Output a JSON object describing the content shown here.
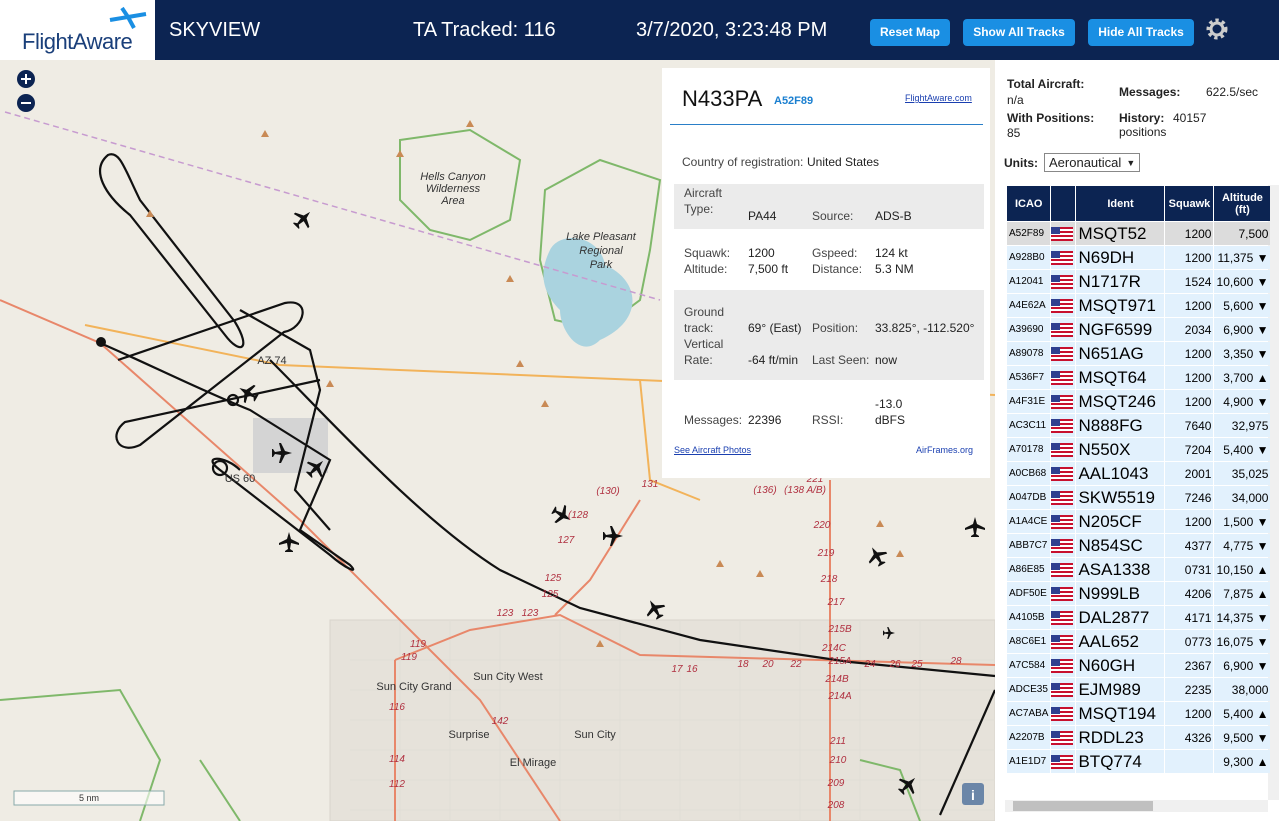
{
  "header": {
    "logo": "FlightAware",
    "title": "SKYVIEW",
    "tracked": "TA Tracked: 116",
    "datetime": "3/7/2020, 3:23:48 PM",
    "buttons": [
      "Reset Map",
      "Show All Tracks",
      "Hide All Tracks"
    ]
  },
  "map": {
    "labels": [
      "Hells Canyon",
      "Wilderness",
      "Area",
      "Lake Pleasant",
      "Regional",
      "Park",
      "Sun City Grand",
      "Sun City West",
      "Surprise",
      "Sun City",
      "El Mirage",
      "AZ 74",
      "US 60"
    ],
    "road_labels": [
      "119",
      "119",
      "116",
      "114",
      "112",
      "142",
      "123",
      "123",
      "125",
      "125",
      "127",
      "(128",
      "(130)",
      "131",
      "(136)",
      "(138 A/B)",
      "221",
      "220",
      "219",
      "218",
      "217",
      "215B",
      "214C",
      "215A",
      "214B",
      "214A",
      "211",
      "210",
      "209",
      "208",
      "17",
      "16",
      "18",
      "20",
      "22",
      "24",
      "26",
      "25",
      "28"
    ],
    "scale": "5 nm",
    "info": "i"
  },
  "popup": {
    "ident": "N433PA",
    "hex": "A52F89",
    "link": "FlightAware.com",
    "country_label": "Country of registration:",
    "country": "United States",
    "fields": [
      {
        "label": "Aircraft Type:",
        "value": "PA44"
      },
      {
        "label": "Source:",
        "value": "ADS-B"
      },
      {
        "label": "Squawk:",
        "value": "1200"
      },
      {
        "label": "Gspeed:",
        "value": "124 kt"
      },
      {
        "label": "Altitude:",
        "value": "7,500 ft"
      },
      {
        "label": "Distance:",
        "value": "5.3 NM"
      },
      {
        "label": "Ground track:",
        "value": "69° (East)"
      },
      {
        "label": "Position:",
        "value": "33.825°, -112.520°"
      },
      {
        "label": "Vertical Rate:",
        "value": "-64 ft/min"
      },
      {
        "label": "Last Seen:",
        "value": "now"
      },
      {
        "label": "Messages:",
        "value": "22396"
      },
      {
        "label": "RSSI:",
        "value": "-13.0 dBFS"
      }
    ],
    "photos": "See Aircraft Photos",
    "airframes": "AirFrames.org"
  },
  "stats": {
    "total_label": "Total Aircraft:",
    "total": "n/a",
    "messages_label": "Messages:",
    "messages": "622.5/sec",
    "positions_label": "With Positions:",
    "positions": "85",
    "history_label": "History:",
    "history": "40157 positions",
    "units_label": "Units:",
    "units": "Aeronautical"
  },
  "table": {
    "headers": [
      "ICAO",
      "Ident",
      "Squawk",
      "Altitude (ft)"
    ],
    "rows": [
      {
        "icao": "A52F89",
        "ident": "MSQT52",
        "squawk": "1200",
        "altitude": "7,500"
      },
      {
        "icao": "A928B0",
        "ident": "N69DH",
        "squawk": "1200",
        "altitude": "11,375 ▼"
      },
      {
        "icao": "A12041",
        "ident": "N1717R",
        "squawk": "1524",
        "altitude": "10,600 ▼"
      },
      {
        "icao": "A4E62A",
        "ident": "MSQT971",
        "squawk": "1200",
        "altitude": "5,600 ▼"
      },
      {
        "icao": "A39690",
        "ident": "NGF6599",
        "squawk": "2034",
        "altitude": "6,900 ▼"
      },
      {
        "icao": "A89078",
        "ident": "N651AG",
        "squawk": "1200",
        "altitude": "3,350 ▼"
      },
      {
        "icao": "A536F7",
        "ident": "MSQT64",
        "squawk": "1200",
        "altitude": "3,700 ▲"
      },
      {
        "icao": "A4F31E",
        "ident": "MSQT246",
        "squawk": "1200",
        "altitude": "4,900 ▼"
      },
      {
        "icao": "AC3C11",
        "ident": "N888FG",
        "squawk": "7640",
        "altitude": "32,975"
      },
      {
        "icao": "A70178",
        "ident": "N550X",
        "squawk": "7204",
        "altitude": "5,400 ▼"
      },
      {
        "icao": "A0CB68",
        "ident": "AAL1043",
        "squawk": "2001",
        "altitude": "35,025"
      },
      {
        "icao": "A047DB",
        "ident": "SKW5519",
        "squawk": "7246",
        "altitude": "34,000"
      },
      {
        "icao": "A1A4CE",
        "ident": "N205CF",
        "squawk": "1200",
        "altitude": "1,500 ▼"
      },
      {
        "icao": "ABB7C7",
        "ident": "N854SC",
        "squawk": "4377",
        "altitude": "4,775 ▼"
      },
      {
        "icao": "A86E85",
        "ident": "ASA1338",
        "squawk": "0731",
        "altitude": "10,150 ▲"
      },
      {
        "icao": "ADF50E",
        "ident": "N999LB",
        "squawk": "4206",
        "altitude": "7,875 ▲"
      },
      {
        "icao": "A4105B",
        "ident": "DAL2877",
        "squawk": "4171",
        "altitude": "14,375 ▼"
      },
      {
        "icao": "A8C6E1",
        "ident": "AAL652",
        "squawk": "0773",
        "altitude": "16,075 ▼"
      },
      {
        "icao": "A7C584",
        "ident": "N60GH",
        "squawk": "2367",
        "altitude": "6,900 ▼"
      },
      {
        "icao": "ADCE35",
        "ident": "EJM989",
        "squawk": "2235",
        "altitude": "38,000"
      },
      {
        "icao": "AC7ABA",
        "ident": "MSQT194",
        "squawk": "1200",
        "altitude": "5,400 ▲"
      },
      {
        "icao": "A2207B",
        "ident": "RDDL23",
        "squawk": "4326",
        "altitude": "9,500 ▼"
      },
      {
        "icao": "A1E1D7",
        "ident": "BTQ774",
        "altitude": "9,300 ▲"
      }
    ]
  }
}
